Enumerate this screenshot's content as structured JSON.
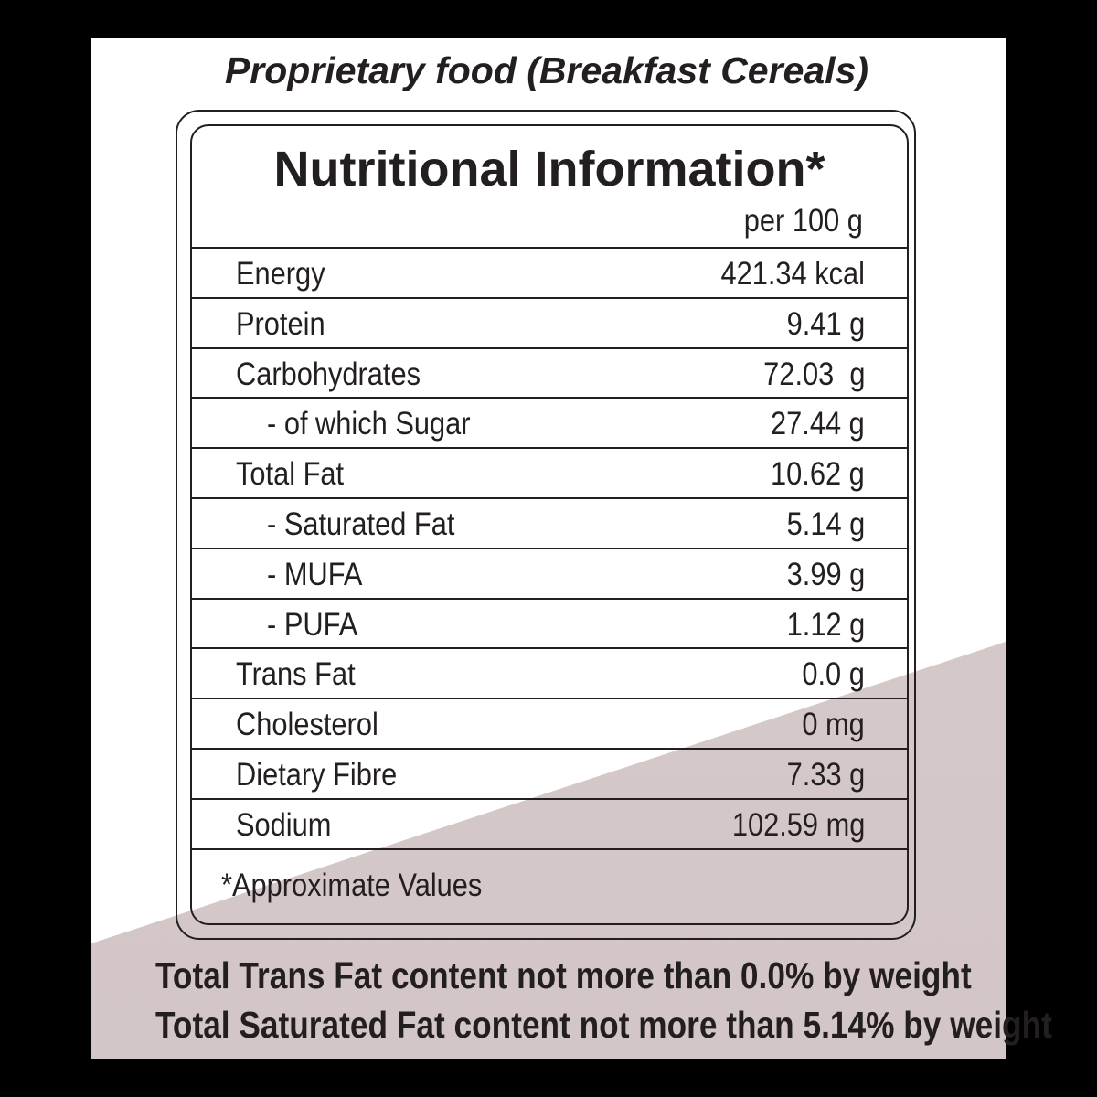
{
  "label": {
    "category": "Proprietary food (Breakfast Cereals)",
    "title": "Nutritional Information*",
    "per_unit": "per 100 g",
    "rows": [
      {
        "nutrient": "Energy",
        "amount": "421.34 kcal",
        "sub": false
      },
      {
        "nutrient": "Protein",
        "amount": "9.41 g",
        "sub": false
      },
      {
        "nutrient": "Carbohydrates",
        "amount": "72.03  g",
        "sub": false
      },
      {
        "nutrient": "- of which Sugar",
        "amount": "27.44 g",
        "sub": true
      },
      {
        "nutrient": "Total Fat",
        "amount": "10.62 g",
        "sub": false
      },
      {
        "nutrient": "- Saturated Fat",
        "amount": "5.14 g",
        "sub": true
      },
      {
        "nutrient": "- MUFA",
        "amount": "3.99 g",
        "sub": true
      },
      {
        "nutrient": "- PUFA",
        "amount": "1.12 g",
        "sub": true
      },
      {
        "nutrient": "Trans Fat",
        "amount": "0.0 g",
        "sub": false
      },
      {
        "nutrient": "Cholesterol",
        "amount": "0 mg",
        "sub": false
      },
      {
        "nutrient": "Dietary Fibre",
        "amount": "7.33 g",
        "sub": false
      },
      {
        "nutrient": "Sodium",
        "amount": "102.59 mg",
        "sub": false
      }
    ],
    "footnote": "*Approximate Values",
    "claims": [
      "Total Trans Fat content not more than 0.0% by weight",
      "Total Saturated Fat content not more than 5.14% by weight"
    ]
  },
  "colors": {
    "text": "#231f20",
    "background": "#ffffff",
    "tint": "#d6c9c9",
    "frame": "#000000"
  }
}
